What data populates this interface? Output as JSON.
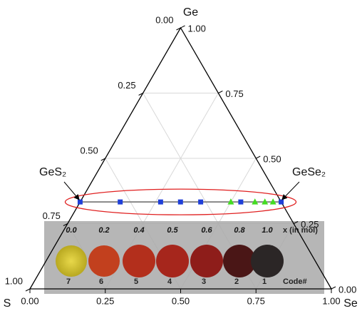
{
  "chart_data": {
    "type": "ternary",
    "axes": {
      "top": "Ge",
      "left": "S",
      "right": "Se"
    },
    "ticks": [
      {
        "value": 0,
        "label": "0.00"
      },
      {
        "value": 0.25,
        "label": "0.25"
      },
      {
        "value": 0.5,
        "label": "0.50"
      },
      {
        "value": 0.75,
        "label": "0.75"
      },
      {
        "value": 1,
        "label": "1.00"
      }
    ],
    "grid": true,
    "annotations": [
      "GeS₂",
      "GeSe₂"
    ],
    "tie_line_color": "#888888",
    "highlight_color": "#e02020",
    "series": [
      {
        "marker": "square",
        "color": "#1f3fd8",
        "ge": [
          0.333,
          0.333,
          0.333,
          0.333,
          0.333,
          0.333,
          0.333
        ],
        "se": [
          0,
          0.133,
          0.267,
          0.333,
          0.4,
          0.533,
          0.667
        ]
      },
      {
        "marker": "triangle",
        "color": "#44dd22",
        "ge": [
          0.333,
          0.333,
          0.333,
          0.333
        ],
        "se": [
          0.5,
          0.58,
          0.613,
          0.64
        ]
      }
    ]
  },
  "sample_photo": {
    "x_labels": [
      "0.0",
      "0.2",
      "0.4",
      "0.5",
      "0.6",
      "0.8",
      "1.0"
    ],
    "x_caption": "x (in mol)",
    "codes": [
      "7",
      "6",
      "5",
      "4",
      "3",
      "2",
      "1"
    ],
    "code_caption": "Code#"
  }
}
